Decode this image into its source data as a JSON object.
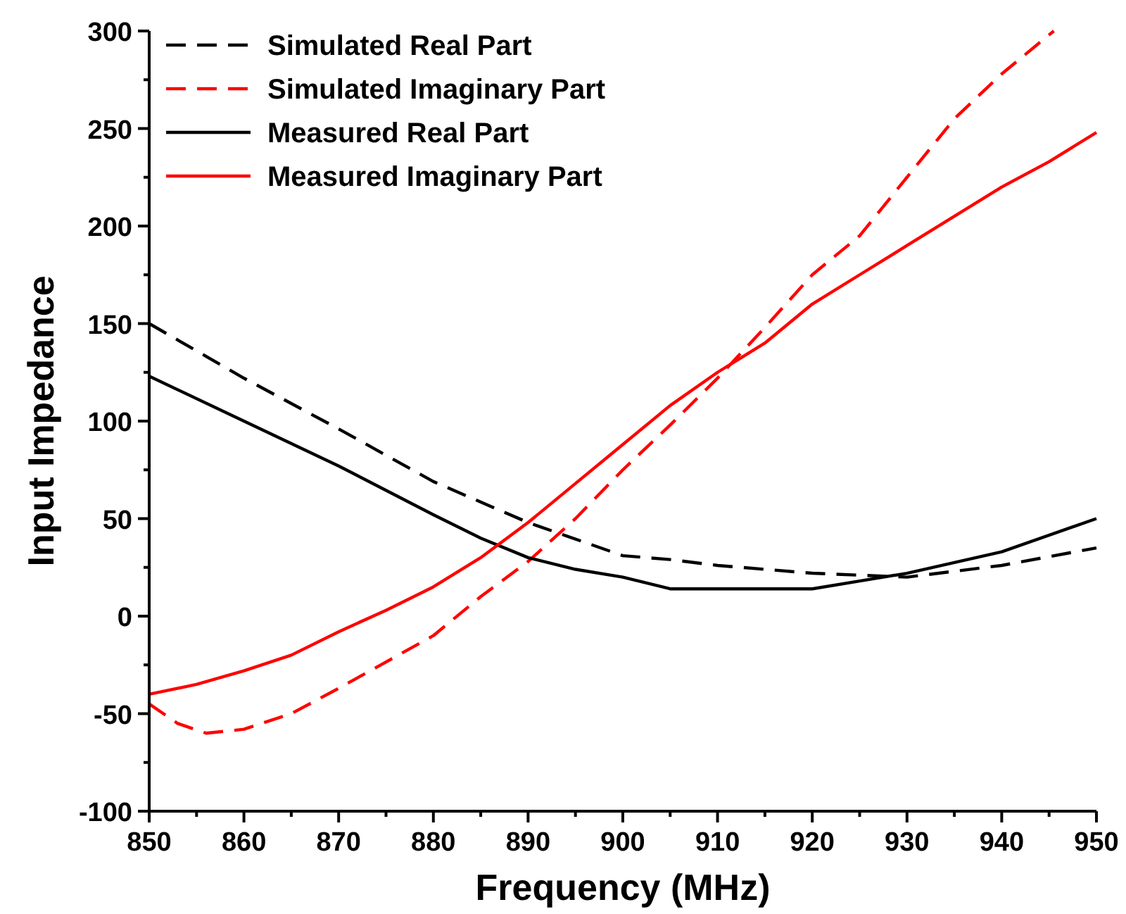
{
  "chart_data": {
    "type": "line",
    "xlabel": "Frequency (MHz)",
    "ylabel": "Input Impedance",
    "xlim": [
      850,
      950
    ],
    "xticks": [
      850,
      860,
      870,
      880,
      890,
      900,
      910,
      920,
      930,
      940,
      950
    ],
    "ylim": [
      -100,
      300
    ],
    "yticks": [
      -100,
      -50,
      0,
      50,
      100,
      150,
      200,
      250,
      300
    ],
    "grid": false,
    "legend": "top left",
    "series": [
      {
        "name": "Simulated Real Part",
        "color": "#000000",
        "line_style": "dashed",
        "x": [
          850,
          860,
          870,
          880,
          890,
          900,
          905,
          910,
          920,
          930,
          940,
          950
        ],
        "values": [
          150,
          122,
          96,
          69,
          48,
          31,
          29,
          26,
          22,
          20,
          26,
          35
        ]
      },
      {
        "name": "Simulated Imaginary Part",
        "color": "#ff0000",
        "line_style": "dashed",
        "x": [
          850,
          853,
          856,
          860,
          865,
          870,
          880,
          885,
          890,
          895,
          900,
          905,
          910,
          915,
          920,
          925,
          930,
          935,
          940,
          945.5
        ],
        "values": [
          -45,
          -55,
          -60,
          -58,
          -50,
          -37,
          -10,
          10,
          28,
          50,
          75,
          98,
          122,
          148,
          175,
          195,
          225,
          255,
          278,
          300
        ]
      },
      {
        "name": "Measured Real Part",
        "color": "#000000",
        "line_style": "solid",
        "x": [
          850,
          860,
          870,
          880,
          885,
          890,
          895,
          900,
          905,
          910,
          915,
          920,
          925,
          930,
          940,
          950
        ],
        "values": [
          123,
          100,
          77,
          52,
          40,
          30,
          24,
          20,
          14,
          14,
          14,
          14,
          18,
          22,
          33,
          50
        ]
      },
      {
        "name": "Measured Imaginary Part",
        "color": "#ff0000",
        "line_style": "solid",
        "x": [
          850,
          855,
          860,
          865,
          870,
          875,
          880,
          885,
          890,
          895,
          900,
          905,
          910,
          915,
          920,
          925,
          930,
          935,
          940,
          945,
          950
        ],
        "values": [
          -40,
          -35,
          -28,
          -20,
          -8,
          3,
          15,
          30,
          48,
          68,
          88,
          108,
          125,
          140,
          160,
          175,
          190,
          205,
          220,
          233,
          248
        ]
      }
    ]
  }
}
